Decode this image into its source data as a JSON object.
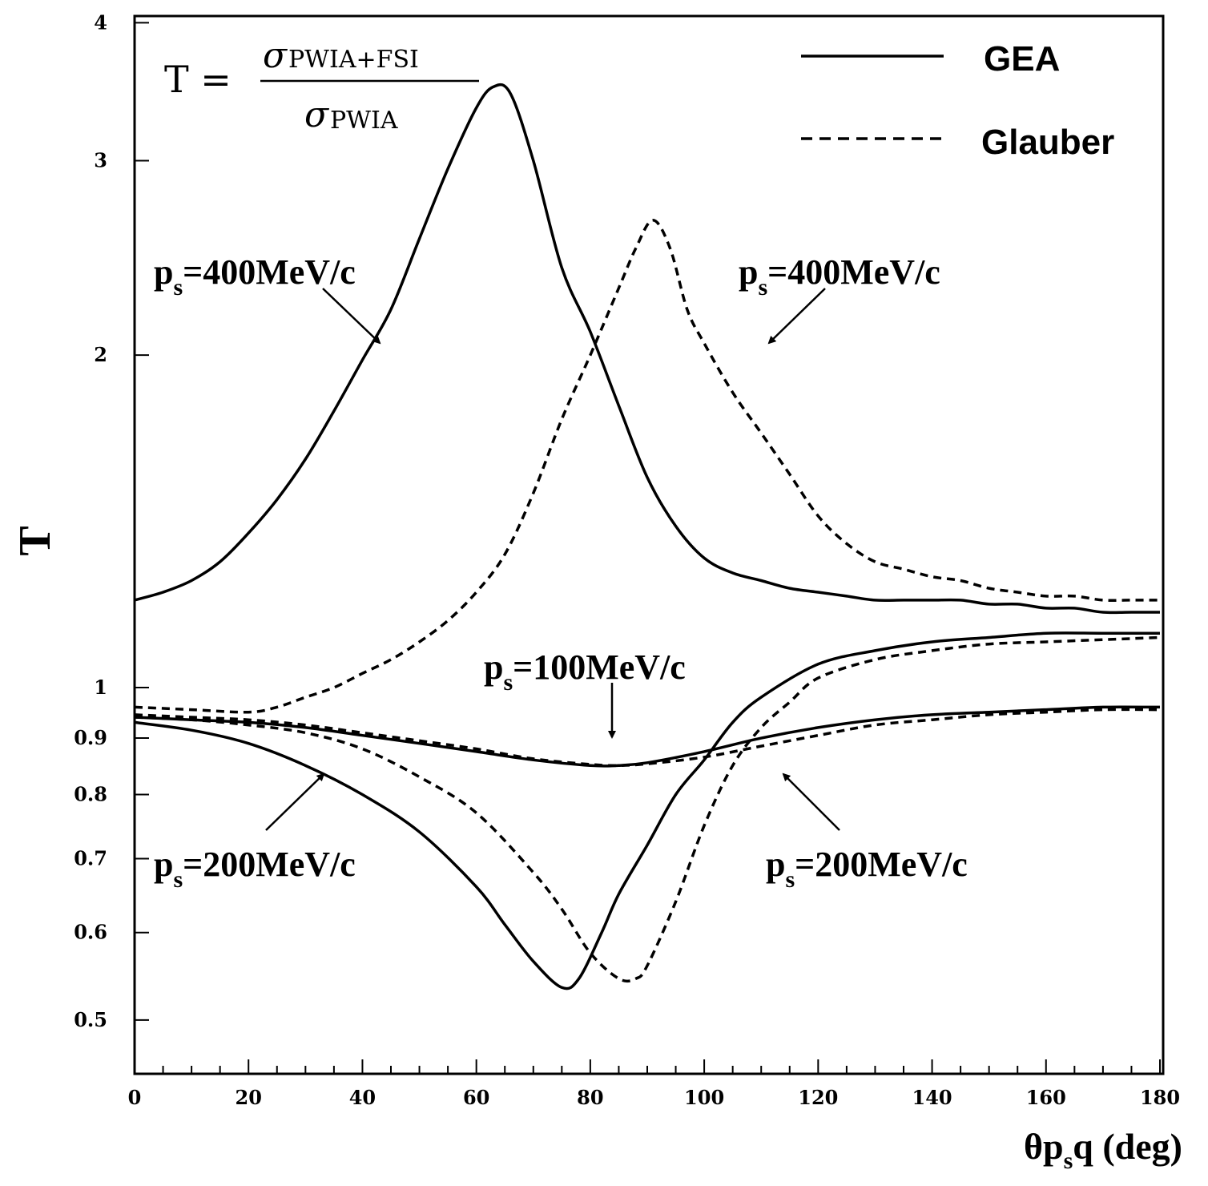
{
  "chart_data": {
    "type": "line",
    "yscale": "log",
    "xlim": [
      0,
      180
    ],
    "ylim": [
      0.45,
      4
    ],
    "xlabel": "θpₛq (deg)",
    "xlabel_parts": {
      "pre": "θp",
      "sub": "s",
      "post": "q (deg)"
    },
    "ylabel": "T",
    "xticks": [
      0,
      20,
      40,
      60,
      80,
      100,
      120,
      140,
      160,
      180
    ],
    "xtick_labels": [
      "0",
      "20",
      "40",
      "60",
      "80",
      "100",
      "120",
      "140",
      "160",
      "180"
    ],
    "yticks": [
      0.5,
      0.6,
      0.7,
      0.8,
      0.9,
      1,
      2,
      3,
      4
    ],
    "ytick_labels": [
      "0.5",
      "0.6",
      "0.7",
      "0.8",
      "0.9",
      "1",
      "2",
      "3",
      "4"
    ],
    "formula": {
      "lhs": "T =",
      "numerator_symbol": "σ",
      "numerator_sub": "PWIA+FSI",
      "denominator_symbol": "σ",
      "denominator_sub": "PWIA"
    },
    "legend": [
      {
        "label": "GEA",
        "style": "solid"
      },
      {
        "label": "Glauber",
        "style": "dashed"
      }
    ],
    "series": [
      {
        "name": "GEA p_s=400MeV/c",
        "style": "solid",
        "x": [
          0,
          5,
          10,
          15,
          20,
          25,
          30,
          35,
          40,
          45,
          50,
          55,
          60,
          63,
          66,
          70,
          75,
          80,
          85,
          90,
          95,
          100,
          105,
          110,
          115,
          120,
          125,
          130,
          135,
          140,
          145,
          150,
          155,
          160,
          165,
          170,
          175,
          180
        ],
        "y": [
          1.2,
          1.22,
          1.25,
          1.3,
          1.38,
          1.48,
          1.61,
          1.78,
          1.98,
          2.2,
          2.55,
          2.95,
          3.35,
          3.5,
          3.45,
          3.0,
          2.4,
          2.1,
          1.8,
          1.55,
          1.4,
          1.31,
          1.27,
          1.25,
          1.23,
          1.22,
          1.21,
          1.2,
          1.2,
          1.2,
          1.2,
          1.19,
          1.19,
          1.18,
          1.18,
          1.17,
          1.17,
          1.17
        ]
      },
      {
        "name": "Glauber p_s=400MeV/c",
        "style": "dashed",
        "x": [
          0,
          10,
          20,
          25,
          30,
          35,
          40,
          45,
          50,
          55,
          60,
          65,
          70,
          75,
          80,
          85,
          88,
          91,
          94,
          97,
          100,
          105,
          110,
          115,
          120,
          125,
          130,
          135,
          140,
          145,
          150,
          155,
          160,
          165,
          170,
          175,
          180
        ],
        "y": [
          0.96,
          0.955,
          0.95,
          0.96,
          0.98,
          1.0,
          1.03,
          1.06,
          1.1,
          1.15,
          1.22,
          1.32,
          1.5,
          1.75,
          2.0,
          2.3,
          2.5,
          2.65,
          2.5,
          2.2,
          2.05,
          1.85,
          1.7,
          1.56,
          1.43,
          1.35,
          1.3,
          1.28,
          1.26,
          1.25,
          1.23,
          1.22,
          1.21,
          1.21,
          1.2,
          1.2,
          1.2
        ]
      },
      {
        "name": "GEA p_s=100MeV/c",
        "style": "solid",
        "x": [
          0,
          10,
          20,
          30,
          40,
          50,
          60,
          70,
          80,
          85,
          90,
          100,
          110,
          120,
          130,
          140,
          150,
          160,
          170,
          180
        ],
        "y": [
          0.94,
          0.935,
          0.93,
          0.92,
          0.905,
          0.89,
          0.875,
          0.86,
          0.85,
          0.85,
          0.855,
          0.875,
          0.9,
          0.92,
          0.935,
          0.945,
          0.95,
          0.955,
          0.96,
          0.96
        ]
      },
      {
        "name": "Glauber p_s=100MeV/c",
        "style": "dashed",
        "x": [
          0,
          10,
          20,
          30,
          40,
          50,
          60,
          70,
          80,
          85,
          90,
          100,
          110,
          120,
          130,
          140,
          150,
          160,
          170,
          180
        ],
        "y": [
          0.945,
          0.94,
          0.935,
          0.925,
          0.91,
          0.895,
          0.88,
          0.862,
          0.852,
          0.85,
          0.853,
          0.865,
          0.885,
          0.905,
          0.925,
          0.935,
          0.945,
          0.95,
          0.955,
          0.955
        ]
      },
      {
        "name": "GEA p_s=200MeV/c",
        "style": "solid",
        "x": [
          0,
          10,
          20,
          30,
          40,
          50,
          60,
          65,
          70,
          75,
          78,
          82,
          85,
          90,
          95,
          100,
          105,
          110,
          120,
          130,
          140,
          150,
          160,
          170,
          180
        ],
        "y": [
          0.93,
          0.915,
          0.89,
          0.85,
          0.8,
          0.74,
          0.66,
          0.61,
          0.565,
          0.535,
          0.545,
          0.6,
          0.65,
          0.72,
          0.8,
          0.86,
          0.93,
          0.98,
          1.05,
          1.08,
          1.1,
          1.11,
          1.12,
          1.12,
          1.12
        ]
      },
      {
        "name": "Glauber p_s=200MeV/c",
        "style": "dashed",
        "x": [
          0,
          10,
          20,
          30,
          40,
          50,
          60,
          70,
          75,
          80,
          85,
          88,
          90,
          95,
          100,
          105,
          110,
          115,
          120,
          130,
          140,
          150,
          160,
          170,
          180
        ],
        "y": [
          0.94,
          0.935,
          0.925,
          0.91,
          0.88,
          0.83,
          0.77,
          0.68,
          0.63,
          0.575,
          0.545,
          0.545,
          0.56,
          0.64,
          0.75,
          0.85,
          0.92,
          0.97,
          1.02,
          1.06,
          1.08,
          1.095,
          1.1,
          1.105,
          1.11
        ]
      }
    ],
    "annotations": [
      {
        "text": "p",
        "sub": "s",
        "tail": "=400MeV/c",
        "for": "GEA p_s=400MeV/c",
        "point": [
          43.5,
          2.02
        ]
      },
      {
        "text": "p",
        "sub": "s",
        "tail": "=400MeV/c",
        "for": "Glauber p_s=400MeV/c",
        "point": [
          111,
          2.02
        ]
      },
      {
        "text": "p",
        "sub": "s",
        "tail": "=100MeV/c",
        "for": "p_s=100MeV/c",
        "point": [
          84,
          0.855
        ]
      },
      {
        "text": "p",
        "sub": "s",
        "tail": "=200MeV/c",
        "for": "GEA p_s=200MeV/c",
        "point": [
          34,
          0.825
        ]
      },
      {
        "text": "p",
        "sub": "s",
        "tail": "=200MeV/c",
        "for": "Glauber p_s=200MeV/c",
        "point": [
          114,
          0.825
        ]
      }
    ]
  }
}
